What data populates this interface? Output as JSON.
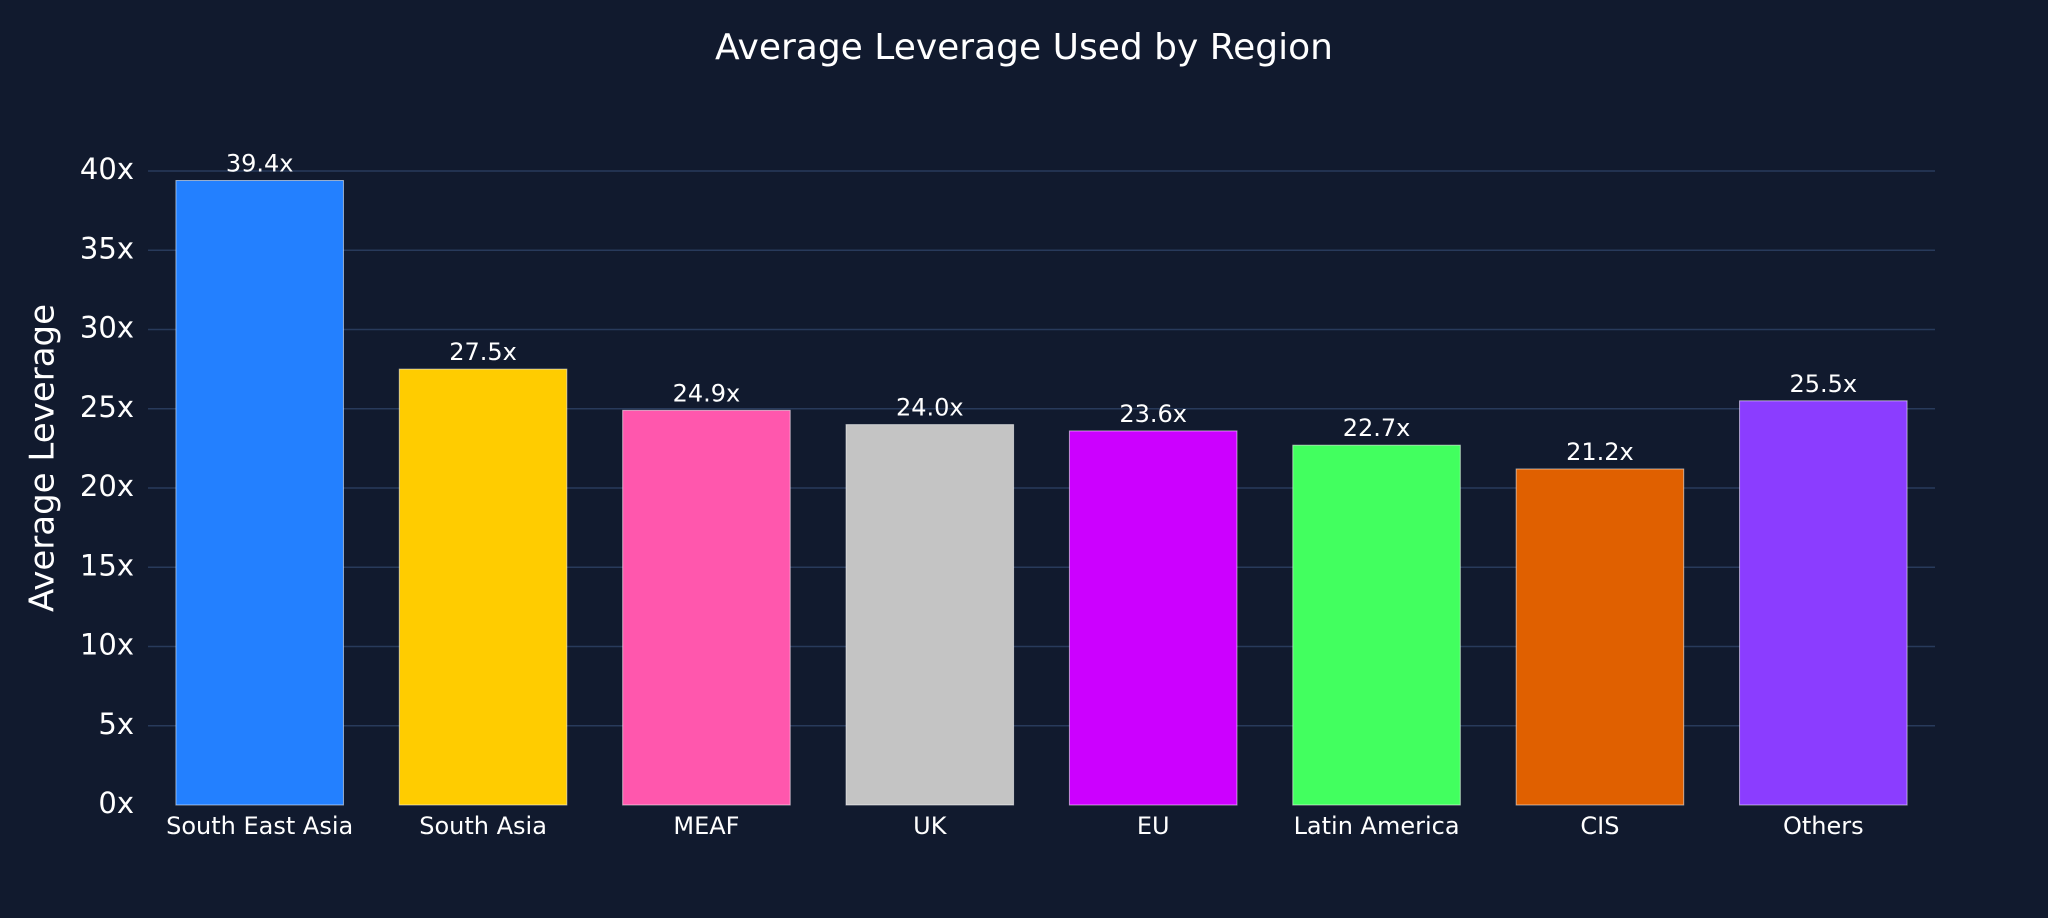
{
  "chart_data": {
    "type": "bar",
    "title": "Average Leverage Used by Region",
    "xlabel": "",
    "ylabel": "Average Leverage",
    "categories": [
      "South East Asia",
      "South Asia",
      "MEAF",
      "UK",
      "EU",
      "Latin America",
      "CIS",
      "Others"
    ],
    "values": [
      39.4,
      27.5,
      24.9,
      24.0,
      23.6,
      22.7,
      21.2,
      25.5
    ],
    "data_labels": [
      "39.4x",
      "27.5x",
      "24.9x",
      "24.0x",
      "23.6x",
      "22.7x",
      "21.2x",
      "25.5x"
    ],
    "colors": [
      "#2380ff",
      "#ffcc00",
      "#ff57ad",
      "#c4c4c4",
      "#cc00ff",
      "#42ff5f",
      "#e06000",
      "#8b3dff"
    ],
    "ylim": [
      0,
      40
    ],
    "yticks": [
      0,
      5,
      10,
      15,
      20,
      25,
      30,
      35,
      40
    ],
    "ytick_labels": [
      "0x",
      "5x",
      "10x",
      "15x",
      "20x",
      "25x",
      "30x",
      "35x",
      "40x"
    ],
    "grid": true,
    "legend": "none"
  }
}
